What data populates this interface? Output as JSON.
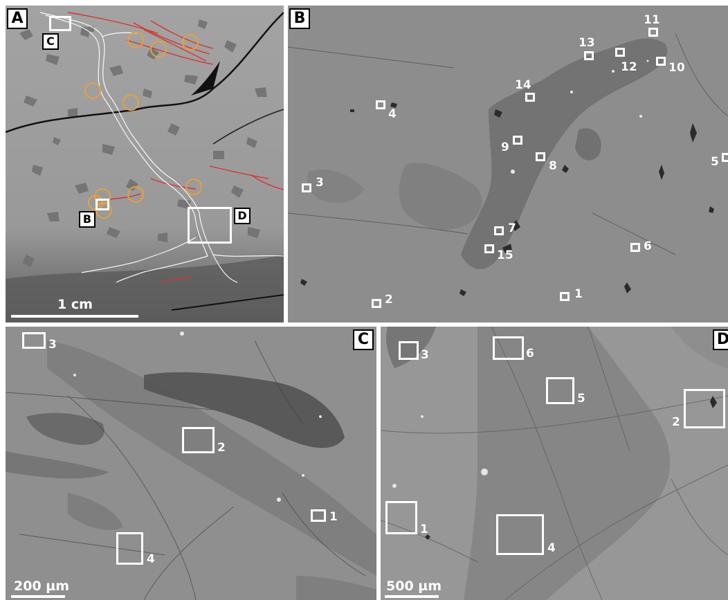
{
  "panels": {
    "a": {
      "letter": "A",
      "scale_label": "1 cm",
      "callouts": {
        "b": "B",
        "c": "C",
        "d": "D"
      },
      "colors": {
        "circle": "#e8a13a",
        "lines_red": "#d9332b",
        "veins": "#ffffff",
        "fractures": "#111111"
      }
    },
    "b": {
      "letter": "B",
      "spots": [
        "1",
        "2",
        "3",
        "4",
        "5",
        "6",
        "7",
        "8",
        "9",
        "10",
        "11",
        "12",
        "13",
        "14",
        "15"
      ]
    },
    "c": {
      "letter": "C",
      "scale_label": "200 µm",
      "spots": [
        "1",
        "2",
        "3",
        "4"
      ]
    },
    "d": {
      "letter": "D",
      "scale_label": "500 µm",
      "spots": [
        "1",
        "2",
        "3",
        "4",
        "5",
        "6"
      ]
    }
  }
}
